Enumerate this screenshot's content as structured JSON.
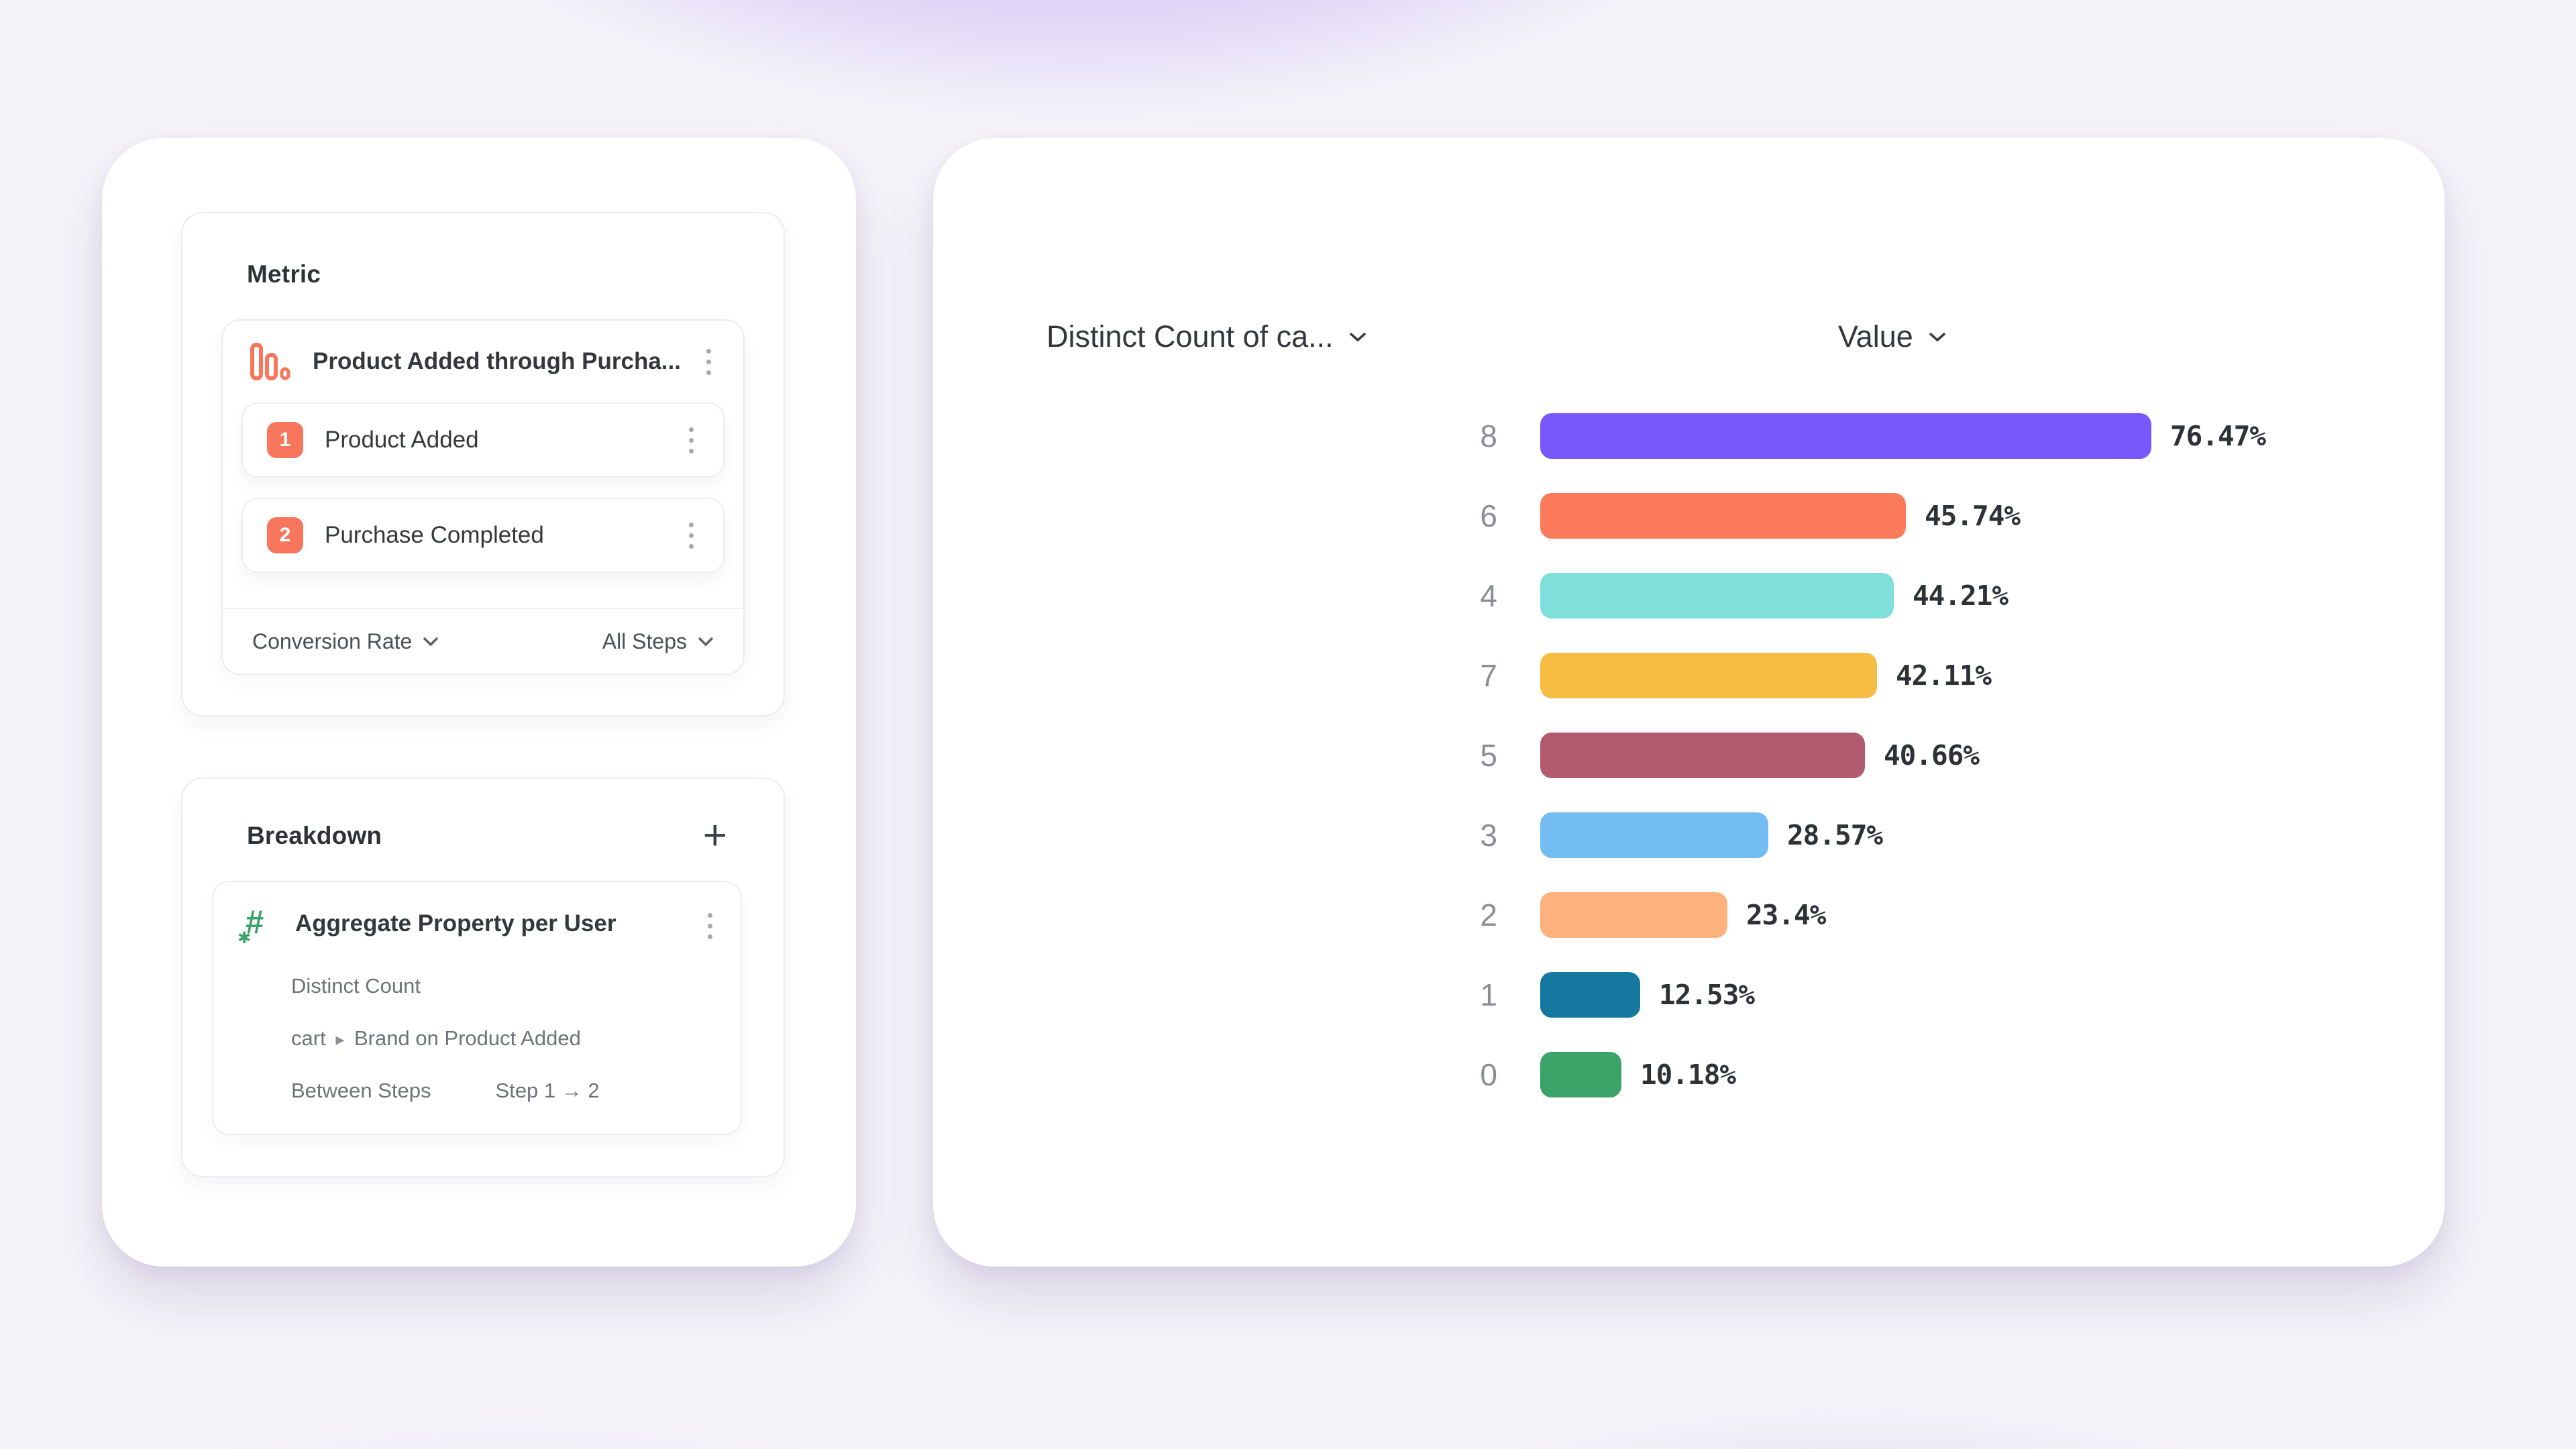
{
  "left_panel": {
    "metric": {
      "title": "Metric",
      "funnel": {
        "name": "Product Added through Purcha...",
        "steps": [
          {
            "badge": "1",
            "label": "Product Added"
          },
          {
            "badge": "2",
            "label": "Purchase Completed"
          }
        ],
        "footer": {
          "measure_label": "Conversion Rate",
          "steps_label": "All Steps"
        }
      }
    },
    "breakdown": {
      "title": "Breakdown",
      "add_button": "+",
      "property": {
        "name": "Aggregate Property per User",
        "aggregation": "Distinct Count",
        "path_prefix": "cart",
        "path_separator": "▸",
        "path_rest": "Brand on Product Added",
        "between_label": "Between Steps",
        "between_value": "Step 1 → 2"
      }
    }
  },
  "chart": {
    "left_header": "Distinct Count of ca...",
    "right_header": "Value"
  },
  "chart_data": {
    "type": "bar",
    "orientation": "horizontal",
    "title": "",
    "xlabel": "Value (%)",
    "ylabel": "Distinct Count of cart ▸ Brand",
    "columns": [
      "Distinct Count of ca...",
      "Value"
    ],
    "categories": [
      "8",
      "6",
      "4",
      "7",
      "5",
      "3",
      "2",
      "1",
      "0"
    ],
    "values": [
      76.47,
      45.74,
      44.21,
      42.11,
      40.66,
      28.57,
      23.4,
      12.53,
      10.18
    ],
    "value_labels": [
      "76.47%",
      "45.74%",
      "44.21%",
      "42.11%",
      "40.66%",
      "28.57%",
      "23.4%",
      "12.53%",
      "10.18%"
    ],
    "bar_colors": [
      "#7857FB",
      "#FB7A5B",
      "#7EDFDB",
      "#F7BC43",
      "#B25A6E",
      "#73BDF3",
      "#FDB17C",
      "#15789F",
      "#3BA368"
    ],
    "scale_max_value": 76.47,
    "grid": "off",
    "legend_position": "none"
  },
  "colors": {
    "accent_orange": "#F8765B",
    "accent_green": "#3BA368",
    "text_primary": "#2E3136",
    "text_secondary": "#6F7277",
    "border": "#ECECF1"
  }
}
